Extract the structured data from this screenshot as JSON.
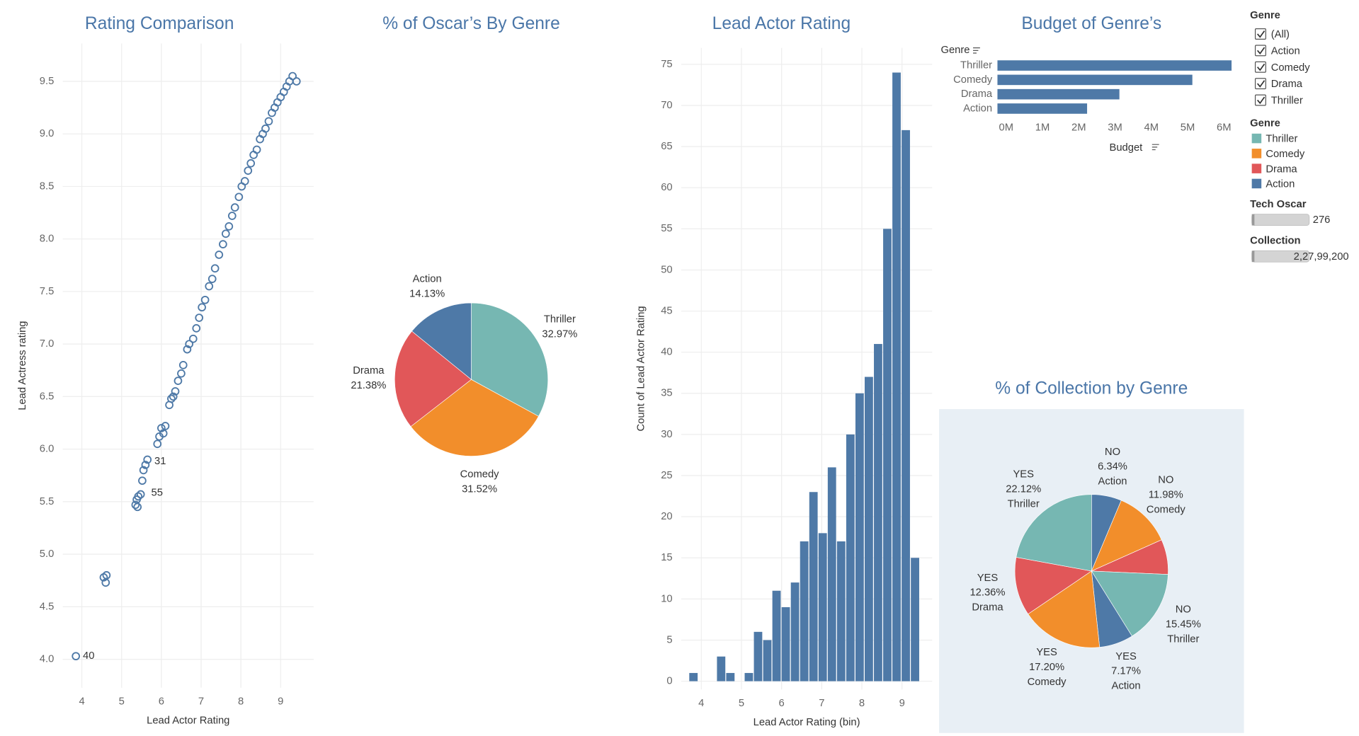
{
  "chart_data": [
    {
      "type": "scatter",
      "title": "Rating Comparison",
      "xlabel": "Lead  Actor Rating",
      "ylabel": "Lead Actress rating",
      "x": [
        3.85,
        4.55,
        4.6,
        4.62,
        5.35,
        5.38,
        5.4,
        5.42,
        5.48,
        5.52,
        5.55,
        5.6,
        5.65,
        5.9,
        5.95,
        6.0,
        6.05,
        6.1,
        6.2,
        6.25,
        6.3,
        6.35,
        6.42,
        6.5,
        6.55,
        6.65,
        6.7,
        6.8,
        6.88,
        6.95,
        7.02,
        7.1,
        7.2,
        7.28,
        7.35,
        7.45,
        7.55,
        7.62,
        7.7,
        7.78,
        7.85,
        7.95,
        8.02,
        8.1,
        8.18,
        8.25,
        8.32,
        8.4,
        8.48,
        8.55,
        8.62,
        8.7,
        8.78,
        8.85,
        8.92,
        9.0,
        9.08,
        9.15,
        9.22,
        9.3,
        9.4
      ],
      "y": [
        4.03,
        4.78,
        4.73,
        4.8,
        5.47,
        5.52,
        5.45,
        5.55,
        5.57,
        5.7,
        5.8,
        5.85,
        5.9,
        6.05,
        6.12,
        6.2,
        6.15,
        6.22,
        6.42,
        6.48,
        6.5,
        6.55,
        6.65,
        6.72,
        6.8,
        6.95,
        7.0,
        7.05,
        7.15,
        7.25,
        7.35,
        7.42,
        7.55,
        7.62,
        7.72,
        7.85,
        7.95,
        8.05,
        8.12,
        8.22,
        8.3,
        8.4,
        8.5,
        8.55,
        8.65,
        8.72,
        8.8,
        8.85,
        8.95,
        9.0,
        9.05,
        9.12,
        9.2,
        9.25,
        9.3,
        9.35,
        9.4,
        9.45,
        9.5,
        9.55,
        9.5
      ],
      "color": "#4e79a7",
      "annotations": [
        {
          "text": "40",
          "x": 3.85,
          "y": 4.03
        },
        {
          "text": "31",
          "x": 5.65,
          "y": 5.9
        },
        {
          "text": "55",
          "x": 5.57,
          "y": 5.7
        }
      ],
      "xlim": [
        3.52,
        9.83
      ],
      "xticks": [
        4,
        5,
        6,
        7,
        8,
        9
      ],
      "ylim": [
        3.73,
        9.86
      ],
      "yticks": [
        {
          "value": 4,
          "label": "4.0"
        },
        4.5,
        {
          "value": 5,
          "label": "5.0"
        },
        5.5,
        {
          "value": 6,
          "label": "6.0"
        },
        6.5,
        {
          "value": 7,
          "label": "7.0"
        },
        7.5,
        {
          "value": 8,
          "label": "8.0"
        },
        8.5,
        {
          "value": 9,
          "label": "9.0"
        },
        9.5
      ],
      "grid": true
    },
    {
      "type": "pie",
      "title": "% of Oscar’s By Genre",
      "categories": [
        "Thriller",
        "Comedy",
        "Drama",
        "Action"
      ],
      "values": [
        32.97,
        31.52,
        21.38,
        14.13
      ],
      "value_labels": [
        "32.97%",
        "31.52%",
        "21.38%",
        "14.13%"
      ],
      "colors": [
        "#76b7b2",
        "#f28e2b",
        "#e15759",
        "#4e79a7"
      ]
    },
    {
      "type": "histogram",
      "title": "Lead Actor Rating",
      "xlabel": "Lead  Actor Rating (bin)",
      "ylabel": "Count of Lead  Actor Rating",
      "bins": [
        3.7,
        3.93,
        4.16,
        4.39,
        4.62,
        4.85,
        5.08,
        5.31,
        5.54,
        5.77,
        6.0,
        6.23,
        6.46,
        6.69,
        6.92,
        7.15,
        7.38,
        7.61,
        7.84,
        8.07,
        8.3,
        8.53,
        8.76,
        8.99,
        9.22,
        9.45
      ],
      "values": [
        1,
        0,
        0,
        3,
        1,
        0,
        1,
        6,
        5,
        11,
        9,
        12,
        17,
        23,
        18,
        26,
        17,
        30,
        35,
        37,
        41,
        55,
        74,
        67,
        15
      ],
      "color": "#4e79a7",
      "xlim": [
        3.5,
        9.75
      ],
      "xticks": [
        4,
        5,
        6,
        7,
        8,
        9
      ],
      "ylim": [
        -1,
        77
      ],
      "yticks": [
        0,
        5,
        10,
        15,
        20,
        25,
        30,
        35,
        40,
        45,
        50,
        55,
        60,
        65,
        70,
        75
      ],
      "grid": true
    },
    {
      "type": "hbar",
      "title": "Budget of Genre’s",
      "xlabel": "Budget",
      "ylabel": "Genre",
      "categories": [
        "Thriller",
        "Comedy",
        "Drama",
        "Action"
      ],
      "values": [
        6450000,
        5370000,
        3360000,
        2470000
      ],
      "color": "#4e79a7",
      "xlim": [
        0,
        6600000
      ],
      "xticks": [
        {
          "value": 0,
          "label": "0M"
        },
        {
          "value": 1000000,
          "label": "1M"
        },
        {
          "value": 2000000,
          "label": "2M"
        },
        {
          "value": 3000000,
          "label": "3M"
        },
        {
          "value": 4000000,
          "label": "4M"
        },
        {
          "value": 5000000,
          "label": "5M"
        },
        {
          "value": 6000000,
          "label": "6M"
        }
      ]
    },
    {
      "type": "pie",
      "title": "% of Collection by Genre",
      "groups": [
        "NO",
        "NO",
        null,
        "NO",
        "YES",
        "YES",
        "YES",
        "YES"
      ],
      "categories": [
        "Action",
        "Comedy",
        null,
        "Thriller",
        "Action",
        "Comedy",
        "Drama",
        "Thriller"
      ],
      "values": [
        6.34,
        11.98,
        7.38,
        15.45,
        7.17,
        17.2,
        12.36,
        22.12
      ],
      "value_labels": [
        "6.34%",
        "11.98%",
        null,
        "15.45%",
        "7.17%",
        "17.20%",
        "12.36%",
        "22.12%"
      ],
      "colors": [
        "#4e79a7",
        "#f28e2b",
        "#e15759",
        "#76b7b2",
        "#4e79a7",
        "#f28e2b",
        "#e15759",
        "#76b7b2"
      ]
    }
  ],
  "controls": {
    "filter": {
      "title": "Genre",
      "options": [
        "(All)",
        "Action",
        "Comedy",
        "Drama",
        "Thriller"
      ]
    },
    "legend": {
      "title": "Genre",
      "items": [
        {
          "name": "Thriller",
          "color": "#76b7b2"
        },
        {
          "name": "Comedy",
          "color": "#f28e2b"
        },
        {
          "name": "Drama",
          "color": "#e15759"
        },
        {
          "name": "Action",
          "color": "#4e79a7"
        }
      ]
    },
    "sliders": [
      {
        "title": "Tech Oscar",
        "value": 276
      },
      {
        "title": "Collection",
        "value": 22799200,
        "label": "2,27,99,200"
      }
    ]
  }
}
